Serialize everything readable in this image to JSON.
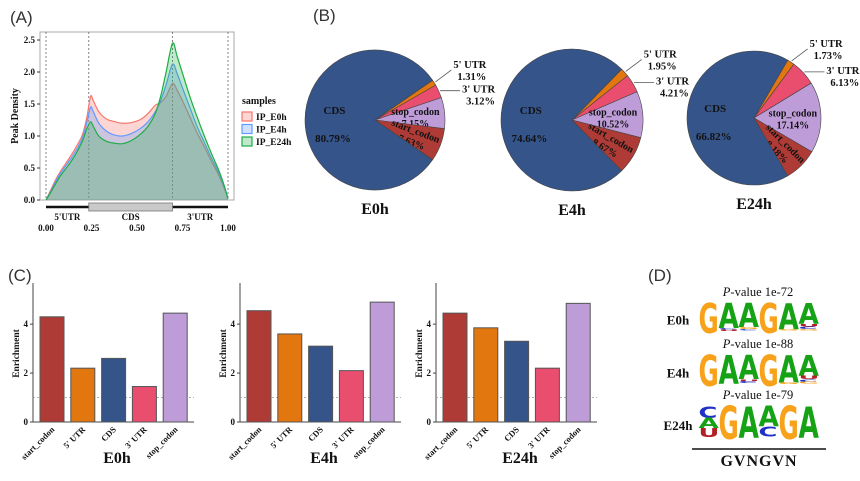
{
  "panel_labels": {
    "a": "(A)",
    "b": "(B)",
    "c": "(C)",
    "d": "(D)"
  },
  "chart_data": [
    {
      "id": "peak-density",
      "type": "area",
      "ylabel": "Peak Density",
      "legend_title": "samples",
      "legend_position": "right",
      "xlim": [
        0,
        1
      ],
      "ylim": [
        0,
        2.5
      ],
      "grid": false,
      "xticks": [
        {
          "v": 0,
          "label": "0.00"
        },
        {
          "v": 0.25,
          "label": "0.25"
        },
        {
          "v": 0.5,
          "label": "0.50"
        },
        {
          "v": 0.75,
          "label": "0.75"
        },
        {
          "v": 1,
          "label": "1.00"
        }
      ],
      "yticks": [
        {
          "v": 0,
          "label": "0.0"
        },
        {
          "v": 0.5,
          "label": "0.5"
        },
        {
          "v": 1,
          "label": "1.0"
        },
        {
          "v": 1.5,
          "label": "1.5"
        },
        {
          "v": 2,
          "label": "2.0"
        },
        {
          "v": 2.5,
          "label": "2.5"
        }
      ],
      "vlines": [
        0,
        0.235,
        0.695,
        1
      ],
      "regions": [
        {
          "label": "5'UTR",
          "from": 0,
          "to": 0.235,
          "style": "line"
        },
        {
          "label": "CDS",
          "from": 0.235,
          "to": 0.695,
          "style": "box"
        },
        {
          "label": "3'UTR",
          "from": 0.695,
          "to": 1,
          "style": "line"
        }
      ],
      "x": [
        0,
        0.02,
        0.05,
        0.08,
        0.12,
        0.16,
        0.2,
        0.225,
        0.245,
        0.26,
        0.29,
        0.33,
        0.37,
        0.42,
        0.47,
        0.52,
        0.56,
        0.6,
        0.63,
        0.66,
        0.695,
        0.72,
        0.75,
        0.79,
        0.83,
        0.87,
        0.91,
        0.95,
        0.98,
        1.0
      ],
      "series": [
        {
          "name": "IP_E0h",
          "color": "#F8766D",
          "fill": "rgba(248,118,109,0.30)",
          "values": [
            0,
            0.12,
            0.3,
            0.45,
            0.62,
            0.8,
            1.02,
            1.3,
            1.62,
            1.55,
            1.38,
            1.27,
            1.23,
            1.2,
            1.21,
            1.26,
            1.35,
            1.48,
            1.52,
            1.62,
            1.82,
            1.72,
            1.55,
            1.3,
            1.05,
            0.83,
            0.6,
            0.38,
            0.18,
            0.02
          ]
        },
        {
          "name": "IP_E4h",
          "color": "#619CFF",
          "fill": "rgba(97,156,255,0.30)",
          "values": [
            0,
            0.1,
            0.27,
            0.42,
            0.58,
            0.75,
            0.97,
            1.22,
            1.45,
            1.38,
            1.2,
            1.08,
            1.02,
            1.0,
            1.04,
            1.12,
            1.22,
            1.38,
            1.55,
            1.8,
            2.12,
            1.98,
            1.75,
            1.45,
            1.15,
            0.9,
            0.65,
            0.42,
            0.2,
            0.02
          ]
        },
        {
          "name": "IP_E24h",
          "color": "#1CAE45",
          "fill": "rgba(28,174,69,0.28)",
          "values": [
            0,
            0.09,
            0.24,
            0.38,
            0.53,
            0.7,
            0.92,
            1.12,
            1.22,
            1.15,
            1.0,
            0.92,
            0.89,
            0.88,
            0.93,
            1.03,
            1.15,
            1.35,
            1.62,
            2.0,
            2.45,
            2.25,
            1.98,
            1.62,
            1.3,
            1.0,
            0.72,
            0.46,
            0.22,
            0.02
          ]
        }
      ]
    },
    {
      "id": "pie-e0h",
      "type": "pie",
      "title": "E0h",
      "slices": [
        {
          "name": "5' UTR",
          "value": 1.31,
          "color": "#E1770E",
          "placement": "out-top"
        },
        {
          "name": "3' UTR",
          "value": 3.12,
          "color": "#E94E6F",
          "placement": "out"
        },
        {
          "name": "stop_codon",
          "value": 7.15,
          "color": "#BD9CD7",
          "placement": "in"
        },
        {
          "name": "start_codon",
          "value": 7.63,
          "color": "#AE3B36",
          "placement": "in-rot"
        },
        {
          "name": "CDS",
          "value": 80.79,
          "color": "#35548A",
          "placement": "cds"
        }
      ]
    },
    {
      "id": "pie-e4h",
      "type": "pie",
      "title": "E4h",
      "slices": [
        {
          "name": "5' UTR",
          "value": 1.95,
          "color": "#E1770E",
          "placement": "out-top"
        },
        {
          "name": "3' UTR",
          "value": 4.21,
          "color": "#E94E6F",
          "placement": "out"
        },
        {
          "name": "stop_codon",
          "value": 10.52,
          "color": "#BD9CD7",
          "placement": "in"
        },
        {
          "name": "start_codon",
          "value": 8.67,
          "color": "#AE3B36",
          "placement": "in-rot"
        },
        {
          "name": "CDS",
          "value": 74.64,
          "color": "#35548A",
          "placement": "cds"
        }
      ]
    },
    {
      "id": "pie-e24h",
      "type": "pie",
      "title": "E24h",
      "slices": [
        {
          "name": "5' UTR",
          "value": 1.73,
          "color": "#E1770E",
          "placement": "out-top"
        },
        {
          "name": "3' UTR",
          "value": 6.13,
          "color": "#E94E6F",
          "placement": "out"
        },
        {
          "name": "stop_codon",
          "value": 17.14,
          "color": "#BD9CD7",
          "placement": "in"
        },
        {
          "name": "start_codon",
          "value": 8.18,
          "color": "#AE3B36",
          "placement": "in-rot"
        },
        {
          "name": "CDS",
          "value": 66.82,
          "color": "#35548A",
          "placement": "cds"
        }
      ]
    },
    {
      "id": "bar-e0h",
      "type": "bar",
      "title": "E0h",
      "ylabel": "Enrichment",
      "refline": 1,
      "ylim": [
        0,
        5.6
      ],
      "yticks": [
        0,
        2,
        4
      ],
      "categories": [
        "start_codon",
        "5' UTR",
        "CDS",
        "3' UTR",
        "stop_codon"
      ],
      "colors": [
        "#AE3B36",
        "#E1770E",
        "#35548A",
        "#E94E6F",
        "#BD9CD7"
      ],
      "values": [
        4.3,
        2.2,
        2.6,
        1.45,
        4.45
      ]
    },
    {
      "id": "bar-e4h",
      "type": "bar",
      "title": "E4h",
      "ylabel": "Enrichment",
      "refline": 1,
      "ylim": [
        0,
        5.6
      ],
      "yticks": [
        0,
        2,
        4
      ],
      "categories": [
        "start_codon",
        "5' UTR",
        "CDS",
        "3' UTR",
        "stop_codon"
      ],
      "colors": [
        "#AE3B36",
        "#E1770E",
        "#35548A",
        "#E94E6F",
        "#BD9CD7"
      ],
      "values": [
        4.55,
        3.6,
        3.1,
        2.1,
        4.9
      ]
    },
    {
      "id": "bar-e24h",
      "type": "bar",
      "title": "E24h",
      "ylabel": "Enrichment",
      "refline": 1,
      "ylim": [
        0,
        5.6
      ],
      "yticks": [
        0,
        2,
        4
      ],
      "categories": [
        "start_codon",
        "5' UTR",
        "CDS",
        "3' UTR",
        "stop_codon"
      ],
      "colors": [
        "#AE3B36",
        "#E1770E",
        "#35548A",
        "#E94E6F",
        "#BD9CD7"
      ],
      "values": [
        4.45,
        3.85,
        3.3,
        2.2,
        4.85
      ]
    }
  ],
  "logos": {
    "letter_colors": {
      "G": "#F7A21A",
      "A": "#15A315",
      "C": "#2131C8",
      "U": "#B22025"
    },
    "consensus": "GVNGVN",
    "rows": [
      {
        "label": "E0h",
        "pvalue": "P-value 1e-72",
        "positions": [
          [
            [
              "G",
              1.0
            ]
          ],
          [
            [
              "A",
              0.84
            ],
            [
              "C",
              0.05
            ],
            [
              "U",
              0.05
            ]
          ],
          [
            [
              "A",
              0.8
            ],
            [
              "G",
              0.06
            ],
            [
              "C",
              0.05
            ]
          ],
          [
            [
              "G",
              1.0
            ]
          ],
          [
            [
              "A",
              0.86
            ],
            [
              "G",
              0.05
            ]
          ],
          [
            [
              "A",
              0.7
            ],
            [
              "U",
              0.09
            ],
            [
              "C",
              0.08
            ],
            [
              "G",
              0.05
            ]
          ]
        ]
      },
      {
        "label": "E4h",
        "pvalue": "P-value 1e-88",
        "positions": [
          [
            [
              "G",
              1.0
            ]
          ],
          [
            [
              "A",
              0.92
            ]
          ],
          [
            [
              "A",
              0.78
            ],
            [
              "U",
              0.07
            ],
            [
              "C",
              0.06
            ]
          ],
          [
            [
              "G",
              1.0
            ]
          ],
          [
            [
              "A",
              0.88
            ],
            [
              "G",
              0.05
            ]
          ],
          [
            [
              "A",
              0.68
            ],
            [
              "U",
              0.1
            ],
            [
              "C",
              0.09
            ],
            [
              "G",
              0.05
            ]
          ]
        ]
      },
      {
        "label": "E24h",
        "pvalue": "P-value 1e-79",
        "positions": [
          [
            [
              "C",
              0.36
            ],
            [
              "A",
              0.31
            ],
            [
              "U",
              0.27
            ]
          ],
          [
            [
              "G",
              1.0
            ]
          ],
          [
            [
              "A",
              0.95
            ]
          ],
          [
            [
              "A",
              0.62
            ],
            [
              "C",
              0.3
            ]
          ],
          [
            [
              "G",
              1.0
            ]
          ],
          [
            [
              "A",
              0.95
            ]
          ]
        ]
      }
    ]
  }
}
